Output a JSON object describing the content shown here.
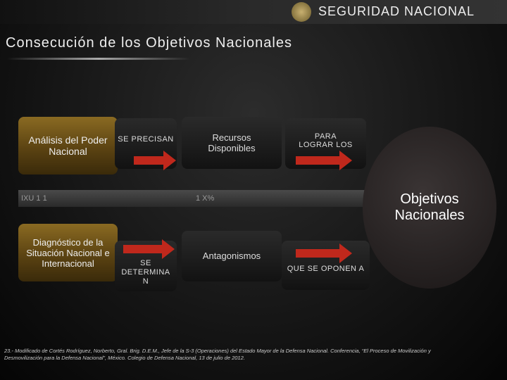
{
  "header": {
    "title": "SEGURIDAD NACIONAL"
  },
  "title": "Consecución de los Objetivos Nacionales",
  "boxes": [
    {
      "label": "Análisis del Poder Nacional"
    },
    {
      "label": "Recursos Disponibles"
    },
    {
      "label": "Diagnóstico de la Situación Nacional e Internacional"
    },
    {
      "label": "Antagonismos"
    }
  ],
  "connectors": [
    {
      "label": "SE PRECISAN"
    },
    {
      "label": "PARA LOGRAR LOS"
    },
    {
      "lines": [
        "SE",
        "DETERMINA",
        "N"
      ]
    },
    {
      "label": "QUE SE OPONEN A"
    }
  ],
  "bar": {
    "left_label": "IXU 1 1",
    "middle_label": "1 X%"
  },
  "goal": {
    "label": "Objetivos Nacionales"
  },
  "footnote": "23.- Modificado de Cortés Rodríguez, Norberto, Gral. Brig. D.E.M., Jefe de la S-3 (Operaciones) del Estado Mayor de la Defensa Nacional. Conferencia, “El Proceso de Movilización y Desmovilización para la Defensa Nacional”, México. Colegio de Defensa Nacional, 13 de julio de 2012."
}
